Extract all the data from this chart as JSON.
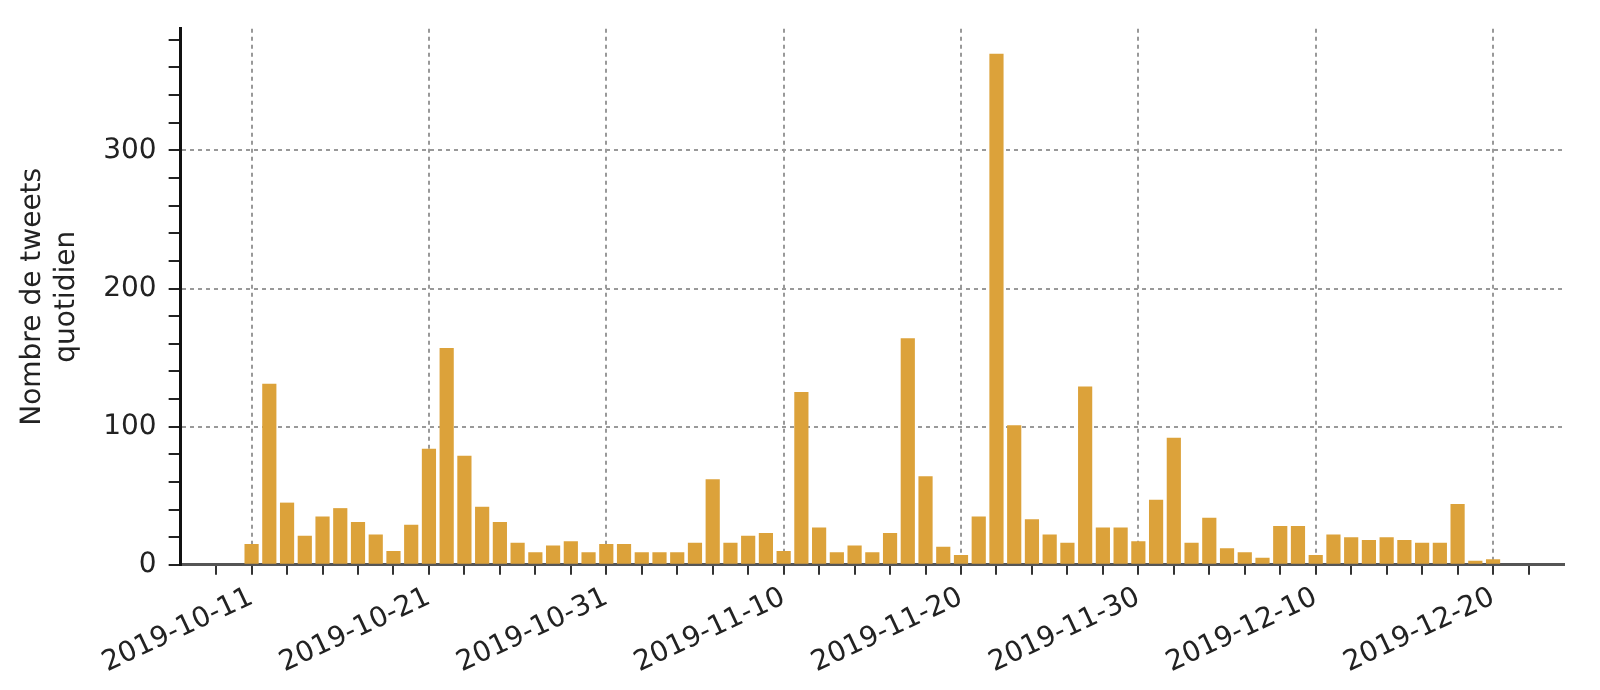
{
  "chart_data": {
    "type": "bar",
    "ylabel": "Nombre de tweets quotidien",
    "x": [
      "2019-10-11",
      "2019-10-12",
      "2019-10-13",
      "2019-10-14",
      "2019-10-15",
      "2019-10-16",
      "2019-10-17",
      "2019-10-18",
      "2019-10-19",
      "2019-10-20",
      "2019-10-21",
      "2019-10-22",
      "2019-10-23",
      "2019-10-24",
      "2019-10-25",
      "2019-10-26",
      "2019-10-27",
      "2019-10-28",
      "2019-10-29",
      "2019-10-30",
      "2019-10-31",
      "2019-11-01",
      "2019-11-02",
      "2019-11-03",
      "2019-11-04",
      "2019-11-05",
      "2019-11-06",
      "2019-11-07",
      "2019-11-08",
      "2019-11-09",
      "2019-11-10",
      "2019-11-11",
      "2019-11-12",
      "2019-11-13",
      "2019-11-14",
      "2019-11-15",
      "2019-11-16",
      "2019-11-17",
      "2019-11-18",
      "2019-11-19",
      "2019-11-20",
      "2019-11-21",
      "2019-11-22",
      "2019-11-23",
      "2019-11-24",
      "2019-11-25",
      "2019-11-26",
      "2019-11-27",
      "2019-11-28",
      "2019-11-29",
      "2019-11-30",
      "2019-12-01",
      "2019-12-02",
      "2019-12-03",
      "2019-12-04",
      "2019-12-05",
      "2019-12-06",
      "2019-12-07",
      "2019-12-08",
      "2019-12-09",
      "2019-12-10",
      "2019-12-11",
      "2019-12-12",
      "2019-12-13",
      "2019-12-14",
      "2019-12-15",
      "2019-12-16",
      "2019-12-17",
      "2019-12-18",
      "2019-12-19",
      "2019-12-20"
    ],
    "values": [
      15,
      131,
      45,
      21,
      35,
      41,
      31,
      22,
      10,
      29,
      84,
      157,
      79,
      42,
      31,
      16,
      9,
      14,
      17,
      9,
      15,
      15,
      9,
      9,
      9,
      16,
      62,
      16,
      21,
      23,
      10,
      125,
      27,
      9,
      14,
      9,
      23,
      164,
      64,
      13,
      7,
      35,
      370,
      101,
      33,
      22,
      16,
      129,
      27,
      27,
      17,
      47,
      92,
      16,
      34,
      12,
      9,
      5,
      28,
      28,
      7,
      22,
      20,
      18,
      20,
      18,
      16,
      16,
      44,
      3,
      4
    ],
    "color": "#dca23a",
    "xlim": [
      "2019-10-07",
      "2019-12-24"
    ],
    "xticks": [
      {
        "value": "2019-10-09",
        "label": null
      },
      {
        "value": "2019-10-11",
        "label": "2019-10-11"
      },
      {
        "value": "2019-10-13",
        "label": null
      },
      {
        "value": "2019-10-15",
        "label": null
      },
      {
        "value": "2019-10-17",
        "label": null
      },
      {
        "value": "2019-10-19",
        "label": null
      },
      {
        "value": "2019-10-21",
        "label": "2019-10-21"
      },
      {
        "value": "2019-10-23",
        "label": null
      },
      {
        "value": "2019-10-25",
        "label": null
      },
      {
        "value": "2019-10-27",
        "label": null
      },
      {
        "value": "2019-10-29",
        "label": null
      },
      {
        "value": "2019-10-31",
        "label": "2019-10-31"
      },
      {
        "value": "2019-11-02",
        "label": null
      },
      {
        "value": "2019-11-04",
        "label": null
      },
      {
        "value": "2019-11-06",
        "label": null
      },
      {
        "value": "2019-11-08",
        "label": null
      },
      {
        "value": "2019-11-10",
        "label": "2019-11-10"
      },
      {
        "value": "2019-11-12",
        "label": null
      },
      {
        "value": "2019-11-14",
        "label": null
      },
      {
        "value": "2019-11-16",
        "label": null
      },
      {
        "value": "2019-11-18",
        "label": null
      },
      {
        "value": "2019-11-20",
        "label": "2019-11-20"
      },
      {
        "value": "2019-11-22",
        "label": null
      },
      {
        "value": "2019-11-24",
        "label": null
      },
      {
        "value": "2019-11-26",
        "label": null
      },
      {
        "value": "2019-11-28",
        "label": null
      },
      {
        "value": "2019-11-30",
        "label": "2019-11-30"
      },
      {
        "value": "2019-12-02",
        "label": null
      },
      {
        "value": "2019-12-04",
        "label": null
      },
      {
        "value": "2019-12-06",
        "label": null
      },
      {
        "value": "2019-12-08",
        "label": null
      },
      {
        "value": "2019-12-10",
        "label": "2019-12-10"
      },
      {
        "value": "2019-12-12",
        "label": null
      },
      {
        "value": "2019-12-14",
        "label": null
      },
      {
        "value": "2019-12-16",
        "label": null
      },
      {
        "value": "2019-12-18",
        "label": null
      },
      {
        "value": "2019-12-20",
        "label": "2019-12-20"
      },
      {
        "value": "2019-12-22",
        "label": null
      }
    ],
    "ylim": [
      0,
      388
    ],
    "yticks": [
      0,
      {
        "value": 20,
        "label": null
      },
      {
        "value": 40,
        "label": null
      },
      {
        "value": 60,
        "label": null
      },
      {
        "value": 80,
        "label": null
      },
      100,
      {
        "value": 120,
        "label": null
      },
      {
        "value": 140,
        "label": null
      },
      {
        "value": 160,
        "label": null
      },
      {
        "value": 180,
        "label": null
      },
      200,
      {
        "value": 220,
        "label": null
      },
      {
        "value": 240,
        "label": null
      },
      {
        "value": 260,
        "label": null
      },
      {
        "value": 280,
        "label": null
      },
      300,
      {
        "value": 320,
        "label": null
      },
      {
        "value": 340,
        "label": null
      },
      {
        "value": 360,
        "label": null
      },
      {
        "value": 380,
        "label": null
      }
    ],
    "grid": true
  }
}
